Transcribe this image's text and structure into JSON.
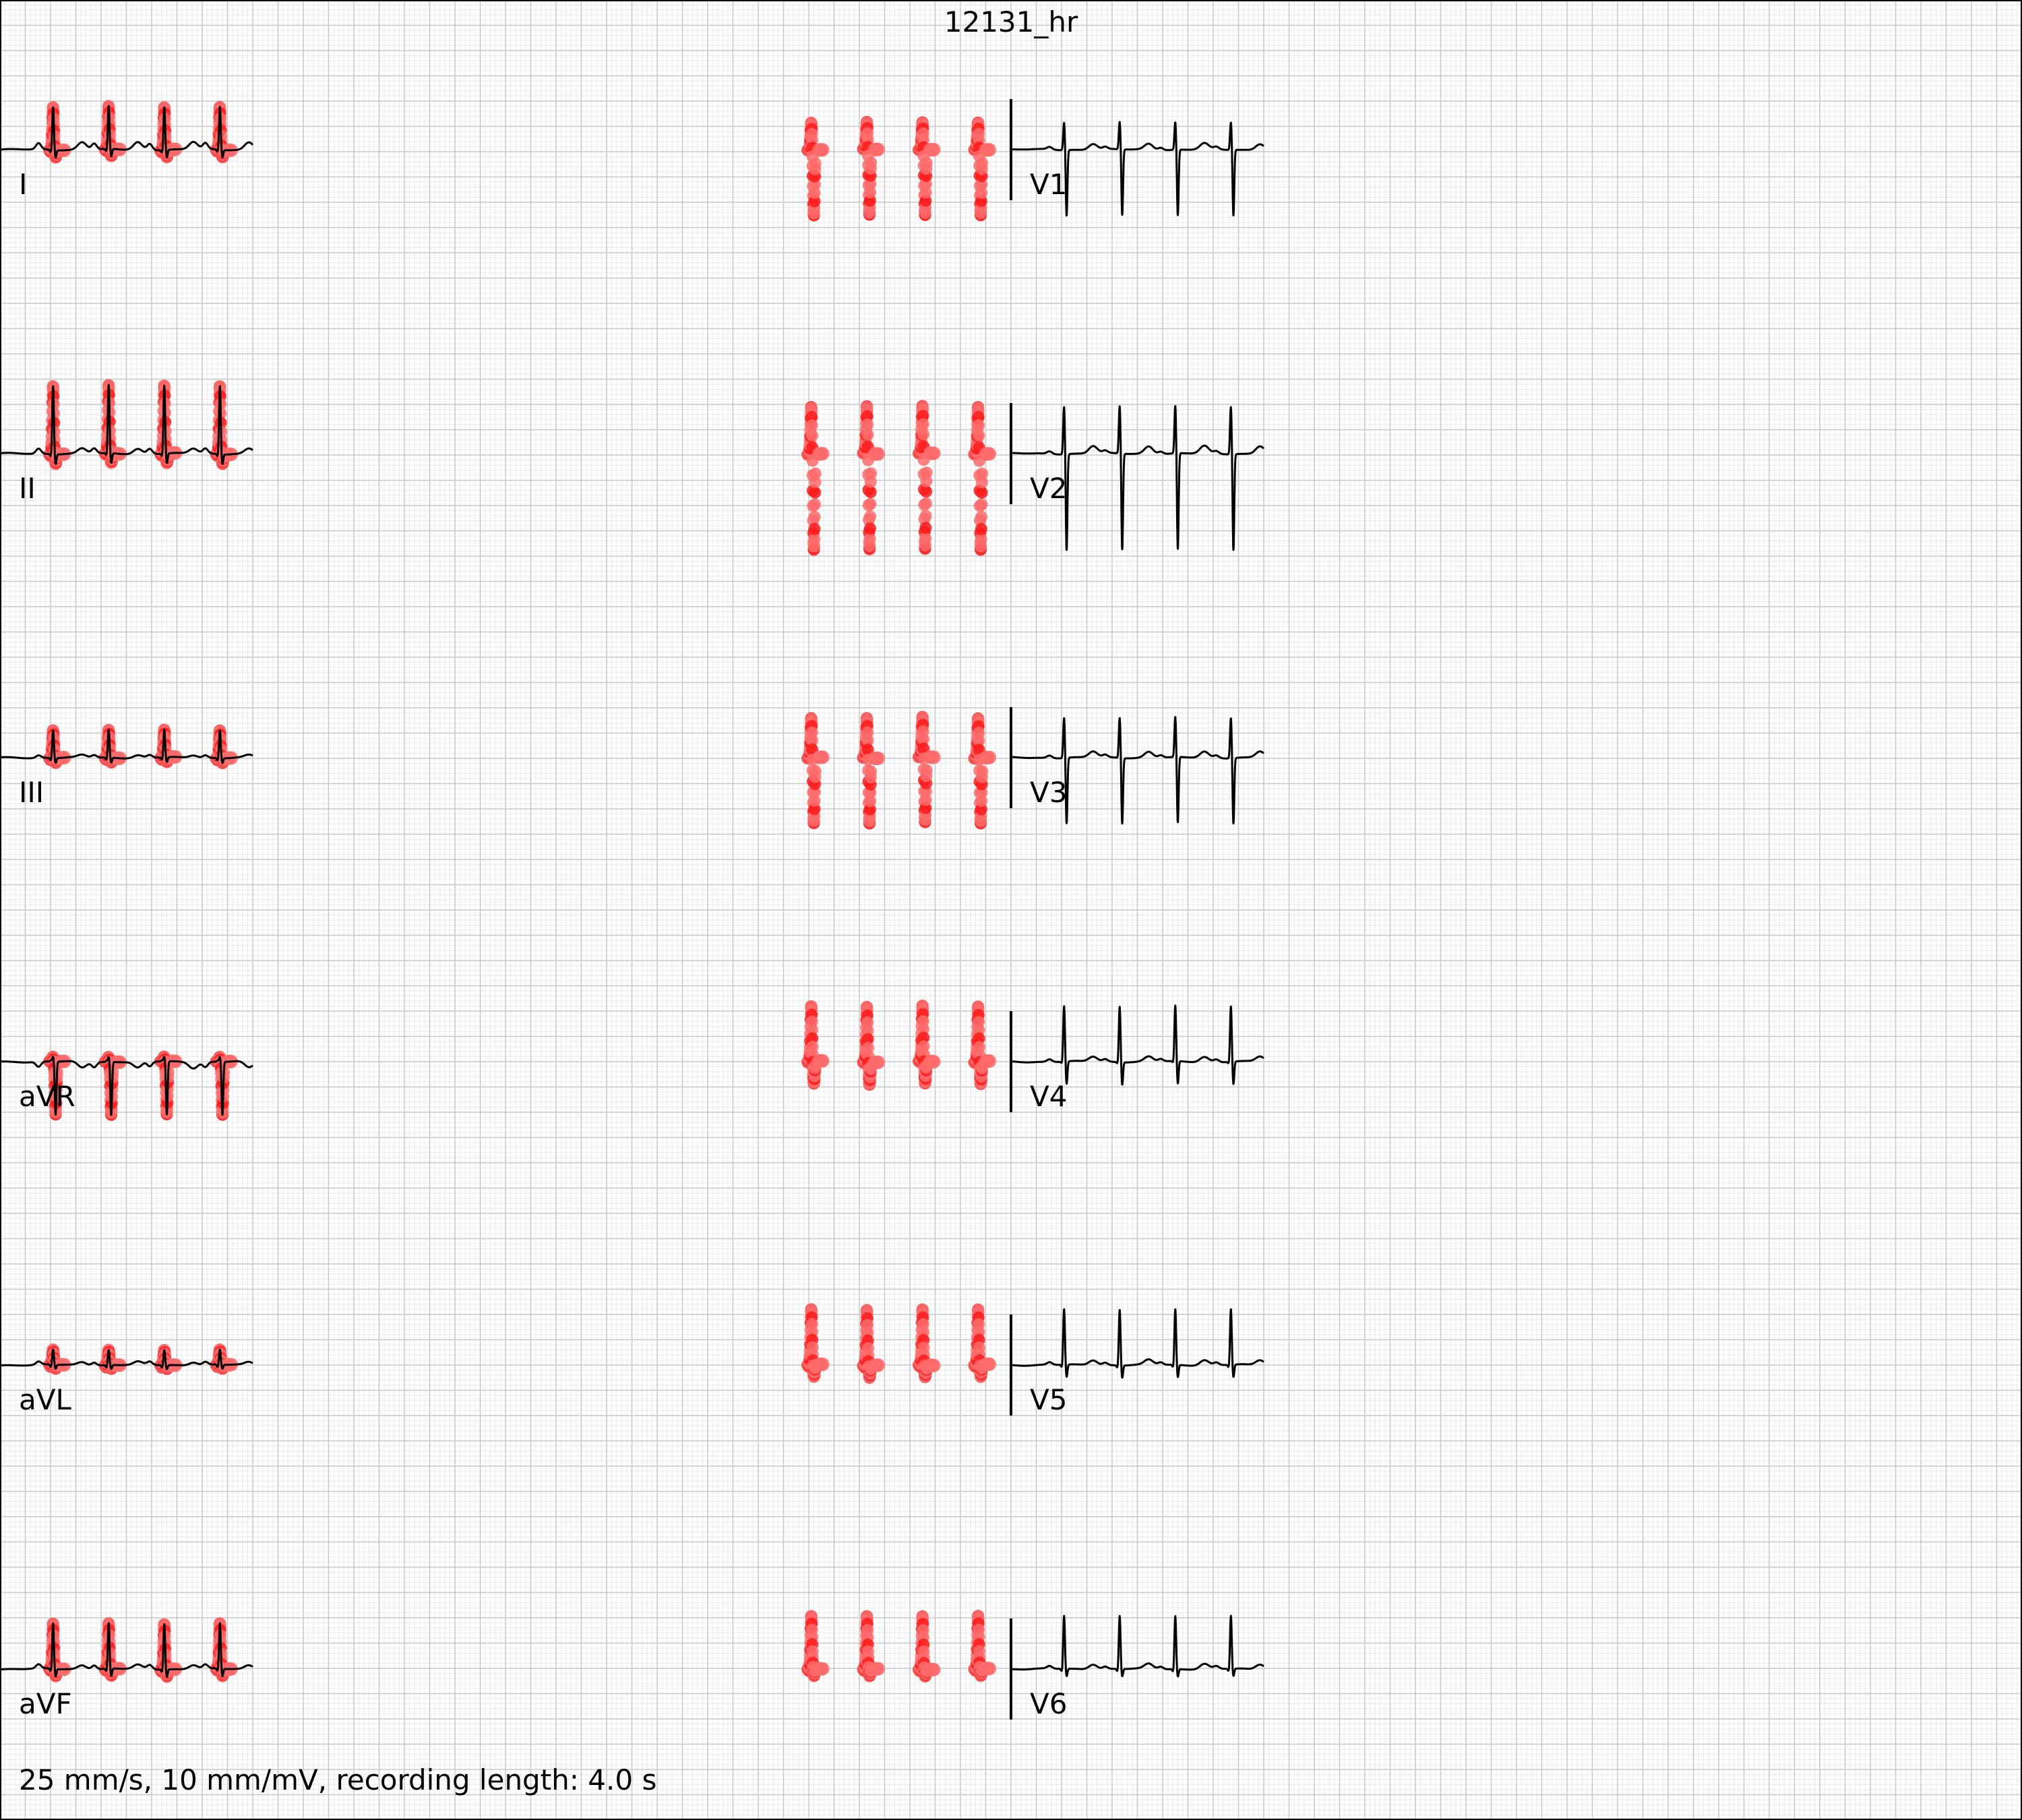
{
  "title": "12131_hr",
  "footer": "25 mm/s, 10 mm/mV, recording length: 4.0 s",
  "colors": {
    "paper": "#ffffff",
    "grid_minor": "#ebebeb",
    "grid_major": "#c8c8c8",
    "trace": "#000000",
    "marker": "#ff1a1a",
    "marker_soft": "#ff6b6b"
  },
  "chart_data": {
    "type": "line",
    "title": "12131_hr",
    "paper_speed_mm_per_s": 25,
    "gain_mm_per_mV": 10,
    "recording_length_s": 4.0,
    "columns": [
      {
        "t_start_s": 0.0,
        "t_end_s": 2.0
      },
      {
        "t_start_s": 2.0,
        "t_end_s": 4.0
      }
    ],
    "beat_times_s": [
      0.42,
      0.86,
      1.3,
      1.74
    ],
    "leads": [
      {
        "name": "I",
        "column": 0,
        "row": 0,
        "p_mV": 0.12,
        "q_mV": -0.05,
        "r_mV": 0.85,
        "s_mV": -0.15,
        "t_mV": 0.15
      },
      {
        "name": "II",
        "column": 0,
        "row": 1,
        "p_mV": 0.1,
        "q_mV": -0.05,
        "r_mV": 1.35,
        "s_mV": -0.2,
        "t_mV": 0.1
      },
      {
        "name": "III",
        "column": 0,
        "row": 2,
        "p_mV": 0.05,
        "q_mV": -0.05,
        "r_mV": 0.55,
        "s_mV": -0.1,
        "t_mV": 0.05
      },
      {
        "name": "aVR",
        "column": 0,
        "row": 3,
        "p_mV": -0.1,
        "q_mV": 0.02,
        "r_mV": 0.1,
        "s_mV": -1.05,
        "t_mV": -0.12
      },
      {
        "name": "aVL",
        "column": 0,
        "row": 4,
        "p_mV": 0.06,
        "q_mV": -0.05,
        "r_mV": 0.3,
        "s_mV": -0.08,
        "t_mV": 0.06
      },
      {
        "name": "aVF",
        "column": 0,
        "row": 5,
        "p_mV": 0.08,
        "q_mV": -0.05,
        "r_mV": 0.9,
        "s_mV": -0.15,
        "t_mV": 0.08
      },
      {
        "name": "V1",
        "column": 1,
        "row": 0,
        "p_mV": 0.05,
        "q_mV": 0.0,
        "r_mV": 0.55,
        "s_mV": -1.3,
        "t_mV": 0.12
      },
      {
        "name": "V2",
        "column": 1,
        "row": 1,
        "p_mV": 0.05,
        "q_mV": 0.0,
        "r_mV": 0.95,
        "s_mV": -1.9,
        "t_mV": 0.15
      },
      {
        "name": "V3",
        "column": 1,
        "row": 2,
        "p_mV": 0.05,
        "q_mV": 0.0,
        "r_mV": 0.8,
        "s_mV": -1.3,
        "t_mV": 0.12
      },
      {
        "name": "V4",
        "column": 1,
        "row": 3,
        "p_mV": 0.05,
        "q_mV": -0.03,
        "r_mV": 1.1,
        "s_mV": -0.45,
        "t_mV": 0.1
      },
      {
        "name": "V5",
        "column": 1,
        "row": 4,
        "p_mV": 0.05,
        "q_mV": -0.05,
        "r_mV": 1.1,
        "s_mV": -0.25,
        "t_mV": 0.1
      },
      {
        "name": "V6",
        "column": 1,
        "row": 5,
        "p_mV": 0.05,
        "q_mV": -0.05,
        "r_mV": 1.05,
        "s_mV": -0.15,
        "t_mV": 0.1
      }
    ]
  }
}
